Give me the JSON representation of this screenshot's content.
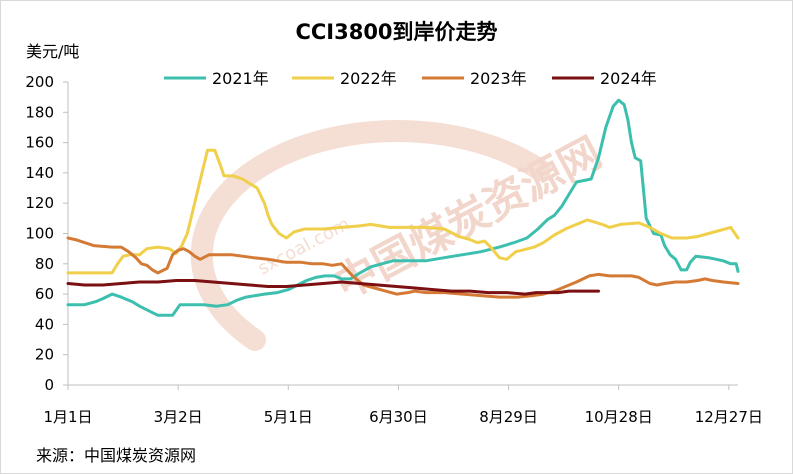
{
  "chart_data": {
    "type": "line",
    "title": "CCI3800到岸价走势",
    "ylabel": "美元/吨",
    "source": "来源：中国煤炭资源网",
    "watermark": "sxcoal.com 中国煤炭资源网",
    "ylim": [
      0,
      200
    ],
    "yticks": [
      "0",
      "20",
      "40",
      "60",
      "80",
      "100",
      "120",
      "140",
      "160",
      "180",
      "200"
    ],
    "xlim": [
      1,
      366
    ],
    "xticks": [
      {
        "label": "1月1日",
        "day": 1
      },
      {
        "label": "3月2日",
        "day": 61
      },
      {
        "label": "5月1日",
        "day": 121
      },
      {
        "label": "6月30日",
        "day": 181
      },
      {
        "label": "8月29日",
        "day": 241
      },
      {
        "label": "10月28日",
        "day": 301
      },
      {
        "label": "12月27日",
        "day": 361
      }
    ],
    "legend_position": "top",
    "grid": false,
    "series": [
      {
        "name": "2021年",
        "color": "#3cbfae",
        "points": [
          [
            1,
            53
          ],
          [
            10,
            53
          ],
          [
            16,
            55
          ],
          [
            20,
            57
          ],
          [
            25,
            60
          ],
          [
            30,
            58
          ],
          [
            36,
            55
          ],
          [
            40,
            52
          ],
          [
            45,
            49
          ],
          [
            50,
            46
          ],
          [
            58,
            46
          ],
          [
            62,
            53
          ],
          [
            75,
            53
          ],
          [
            82,
            52
          ],
          [
            88,
            53
          ],
          [
            93,
            56
          ],
          [
            98,
            58
          ],
          [
            103,
            59
          ],
          [
            108,
            60
          ],
          [
            115,
            61
          ],
          [
            121,
            63
          ],
          [
            126,
            66
          ],
          [
            131,
            69
          ],
          [
            136,
            71
          ],
          [
            141,
            72
          ],
          [
            146,
            72
          ],
          [
            150,
            70
          ],
          [
            155,
            70
          ],
          [
            160,
            74
          ],
          [
            166,
            78
          ],
          [
            172,
            80
          ],
          [
            178,
            82
          ],
          [
            186,
            82
          ],
          [
            196,
            82
          ],
          [
            206,
            84
          ],
          [
            216,
            86
          ],
          [
            226,
            88
          ],
          [
            236,
            91
          ],
          [
            244,
            94
          ],
          [
            251,
            97
          ],
          [
            257,
            103
          ],
          [
            262,
            109
          ],
          [
            266,
            112
          ],
          [
            270,
            118
          ],
          [
            274,
            126
          ],
          [
            278,
            134
          ],
          [
            286,
            136
          ],
          [
            290,
            150
          ],
          [
            294,
            170
          ],
          [
            298,
            184
          ],
          [
            301,
            188
          ],
          [
            304,
            185
          ],
          [
            306,
            175
          ],
          [
            308,
            160
          ],
          [
            310,
            150
          ],
          [
            313,
            148
          ],
          [
            316,
            110
          ],
          [
            320,
            100
          ],
          [
            324,
            99
          ],
          [
            326,
            92
          ],
          [
            329,
            86
          ],
          [
            332,
            83
          ],
          [
            335,
            76
          ],
          [
            338,
            76
          ],
          [
            340,
            81
          ],
          [
            343,
            85
          ],
          [
            350,
            84
          ],
          [
            358,
            82
          ],
          [
            362,
            80
          ],
          [
            365,
            80
          ],
          [
            366,
            75
          ]
        ]
      },
      {
        "name": "2022年",
        "color": "#f0cf4a",
        "points": [
          [
            1,
            74
          ],
          [
            10,
            74
          ],
          [
            20,
            74
          ],
          [
            25,
            74
          ],
          [
            28,
            80
          ],
          [
            31,
            85
          ],
          [
            35,
            86
          ],
          [
            40,
            86
          ],
          [
            44,
            90
          ],
          [
            50,
            91
          ],
          [
            56,
            90
          ],
          [
            60,
            87
          ],
          [
            63,
            92
          ],
          [
            66,
            100
          ],
          [
            69,
            115
          ],
          [
            72,
            130
          ],
          [
            75,
            145
          ],
          [
            77,
            155
          ],
          [
            81,
            155
          ],
          [
            84,
            145
          ],
          [
            86,
            138
          ],
          [
            91,
            138
          ],
          [
            96,
            136
          ],
          [
            100,
            133
          ],
          [
            104,
            130
          ],
          [
            108,
            120
          ],
          [
            110,
            112
          ],
          [
            112,
            106
          ],
          [
            116,
            100
          ],
          [
            120,
            97
          ],
          [
            124,
            101
          ],
          [
            130,
            103
          ],
          [
            140,
            103
          ],
          [
            150,
            104
          ],
          [
            160,
            105
          ],
          [
            166,
            106
          ],
          [
            171,
            105
          ],
          [
            176,
            104
          ],
          [
            186,
            104
          ],
          [
            196,
            104
          ],
          [
            206,
            103
          ],
          [
            214,
            98
          ],
          [
            220,
            96
          ],
          [
            224,
            94
          ],
          [
            228,
            95
          ],
          [
            232,
            90
          ],
          [
            236,
            84
          ],
          [
            240,
            83
          ],
          [
            245,
            88
          ],
          [
            255,
            91
          ],
          [
            260,
            94
          ],
          [
            266,
            99
          ],
          [
            272,
            103
          ],
          [
            278,
            106
          ],
          [
            284,
            109
          ],
          [
            292,
            106
          ],
          [
            296,
            104
          ],
          [
            302,
            106
          ],
          [
            312,
            107
          ],
          [
            318,
            104
          ],
          [
            324,
            100
          ],
          [
            330,
            97
          ],
          [
            338,
            97
          ],
          [
            344,
            98
          ],
          [
            350,
            100
          ],
          [
            356,
            102
          ],
          [
            362,
            104
          ],
          [
            366,
            97
          ]
        ]
      },
      {
        "name": "2023年",
        "color": "#d47a34",
        "points": [
          [
            1,
            97
          ],
          [
            5,
            96
          ],
          [
            10,
            94
          ],
          [
            15,
            92
          ],
          [
            25,
            91
          ],
          [
            30,
            91
          ],
          [
            34,
            88
          ],
          [
            38,
            84
          ],
          [
            41,
            80
          ],
          [
            44,
            79
          ],
          [
            47,
            76
          ],
          [
            50,
            74
          ],
          [
            55,
            77
          ],
          [
            58,
            86
          ],
          [
            61,
            89
          ],
          [
            64,
            90
          ],
          [
            67,
            88
          ],
          [
            70,
            85
          ],
          [
            73,
            83
          ],
          [
            78,
            86
          ],
          [
            82,
            86
          ],
          [
            90,
            86
          ],
          [
            96,
            85
          ],
          [
            102,
            84
          ],
          [
            110,
            83
          ],
          [
            120,
            81
          ],
          [
            128,
            81
          ],
          [
            134,
            80
          ],
          [
            140,
            80
          ],
          [
            145,
            79
          ],
          [
            150,
            80
          ],
          [
            156,
            72
          ],
          [
            162,
            66
          ],
          [
            168,
            64
          ],
          [
            174,
            62
          ],
          [
            180,
            60
          ],
          [
            186,
            61
          ],
          [
            190,
            62
          ],
          [
            196,
            61
          ],
          [
            206,
            61
          ],
          [
            216,
            60
          ],
          [
            226,
            59
          ],
          [
            236,
            58
          ],
          [
            246,
            58
          ],
          [
            254,
            59
          ],
          [
            260,
            60
          ],
          [
            266,
            62
          ],
          [
            272,
            65
          ],
          [
            278,
            68
          ],
          [
            285,
            72
          ],
          [
            290,
            73
          ],
          [
            296,
            72
          ],
          [
            302,
            72
          ],
          [
            308,
            72
          ],
          [
            312,
            71
          ],
          [
            318,
            67
          ],
          [
            322,
            66
          ],
          [
            326,
            67
          ],
          [
            332,
            68
          ],
          [
            338,
            68
          ],
          [
            344,
            69
          ],
          [
            348,
            70
          ],
          [
            352,
            69
          ],
          [
            358,
            68
          ],
          [
            366,
            67
          ]
        ]
      },
      {
        "name": "2024年",
        "color": "#7b0f12",
        "points": [
          [
            1,
            67
          ],
          [
            10,
            66
          ],
          [
            20,
            66
          ],
          [
            30,
            67
          ],
          [
            40,
            68
          ],
          [
            50,
            68
          ],
          [
            60,
            69
          ],
          [
            70,
            69
          ],
          [
            80,
            68
          ],
          [
            90,
            67
          ],
          [
            100,
            66
          ],
          [
            110,
            65
          ],
          [
            120,
            65
          ],
          [
            130,
            66
          ],
          [
            140,
            67
          ],
          [
            150,
            68
          ],
          [
            160,
            67
          ],
          [
            170,
            66
          ],
          [
            180,
            65
          ],
          [
            190,
            64
          ],
          [
            200,
            63
          ],
          [
            210,
            62
          ],
          [
            220,
            62
          ],
          [
            230,
            61
          ],
          [
            240,
            61
          ],
          [
            250,
            60
          ],
          [
            256,
            61
          ],
          [
            262,
            61
          ],
          [
            268,
            61
          ],
          [
            274,
            62
          ],
          [
            280,
            62
          ],
          [
            290,
            62
          ]
        ]
      }
    ]
  }
}
